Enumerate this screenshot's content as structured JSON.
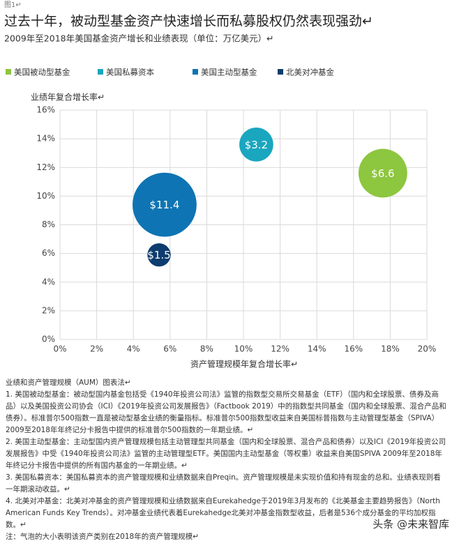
{
  "figure_label": "图1↵",
  "chart_data": {
    "type": "bubble",
    "title": "过去十年，被动型基金资产快速增长而私募股权仍然表现强劲↵",
    "subtitle": "2009年至2018年美国基金资产增长和业绩表现（单位：万亿美元）↵",
    "y_label": "业绩年复合增长率↵",
    "x_label": "资产管理规模年复合增长率↵",
    "xlim": [
      0,
      20
    ],
    "ylim": [
      0,
      16
    ],
    "xticks": [
      {
        "value": 0,
        "label": "0%"
      },
      {
        "value": 2,
        "label": "2%"
      },
      {
        "value": 4,
        "label": "4%"
      },
      {
        "value": 6,
        "label": "6%"
      },
      {
        "value": 8,
        "label": "8%"
      },
      {
        "value": 10,
        "label": "10%"
      },
      {
        "value": 12,
        "label": "12%"
      },
      {
        "value": 14,
        "label": "14%"
      },
      {
        "value": 16,
        "label": "16%"
      },
      {
        "value": 18,
        "label": "18%"
      },
      {
        "value": 20,
        "label": "20%"
      }
    ],
    "yticks": [
      {
        "value": 0,
        "label": "0%"
      },
      {
        "value": 2,
        "label": "2%"
      },
      {
        "value": 4,
        "label": "4%"
      },
      {
        "value": 6,
        "label": "6%"
      },
      {
        "value": 8,
        "label": "8%"
      },
      {
        "value": 10,
        "label": "10%"
      },
      {
        "value": 12,
        "label": "12%"
      },
      {
        "value": 14,
        "label": "14%"
      },
      {
        "value": 16,
        "label": "16%"
      }
    ],
    "grid": true,
    "series": [
      {
        "name": "美国被动型基金",
        "color": "#8dc63f",
        "x": [
          17.6
        ],
        "values": [
          11.6
        ],
        "sizes": [
          6.6
        ],
        "value_labels": [
          "$6.6"
        ]
      },
      {
        "name": "美国私募资本",
        "color": "#1aa6bf",
        "x": [
          10.7
        ],
        "values": [
          13.6
        ],
        "sizes": [
          3.2
        ],
        "value_labels": [
          "$3.2"
        ]
      },
      {
        "name": "美国主动型基金",
        "color": "#0e74b3",
        "x": [
          5.7
        ],
        "values": [
          9.4
        ],
        "sizes": [
          11.4
        ],
        "value_labels": [
          "$11.4"
        ]
      },
      {
        "name": "北美对冲基金",
        "color": "#0d3c6e",
        "x": [
          5.4
        ],
        "values": [
          5.9
        ],
        "sizes": [
          1.5
        ],
        "value_labels": [
          "$1.5"
        ]
      }
    ]
  },
  "notes": [
    "业绩和资产管理规模（AUM）图表法↵",
    "1. 美国被动型基金：被动型国内基金包括受《1940年投资公司法》监管的指数型交易所交易基金（ETF）（国内和全球股票、债券及商品）以及美国投资公司协会（ICI）《2019年投资公司发展报告》（Factbook 2019）中的指数型共同基金（国内和全球股票、混合产品和债券）。标准普尔500指数一直是被动型基金业绩的衡量指标。标准普尔500指数型收益来自美国标普指数与主动管理型基金（SPIVA）2009至2018年年终记分卡报告中提供的标准普尔500指数的一年期业绩。↵",
    "2. 美国主动型基金：主动型国内资产管理规模包括主动管理型共同基金（国内和全球股票、混合产品和债券）以及ICI《2019年投资公司发展报告》中受《1940年投资公司法》监管的主动管理型ETF。美国国内主动型基金（等权重）收益来自美国SPIVA 2009年至2018年年终记分卡报告中提供的所有国内基金的一年期业绩。↵",
    "3. 美国私募资本：美国私募资本的资产管理规模和业绩数据来自Preqin。资产管理规模是未实现价值和持有现金的总和。业绩表现则看一年期滚动收益。↵",
    "4. 北美对冲基金：北美对冲基金的资产管理规模和业绩数据来自Eurekahedge于2019年3月发布的《北美基金主要趋势报告》（North American Funds Key Trends）。对冲基金业绩代表着Eurekahedge北美对冲基金指数型收益，后者是536个成分基金的平均加权指数。↵",
    "注：气泡的大小表明该资产类别在2018年的资产管理规模↵"
  ],
  "watermark": "头条 @未来智库"
}
